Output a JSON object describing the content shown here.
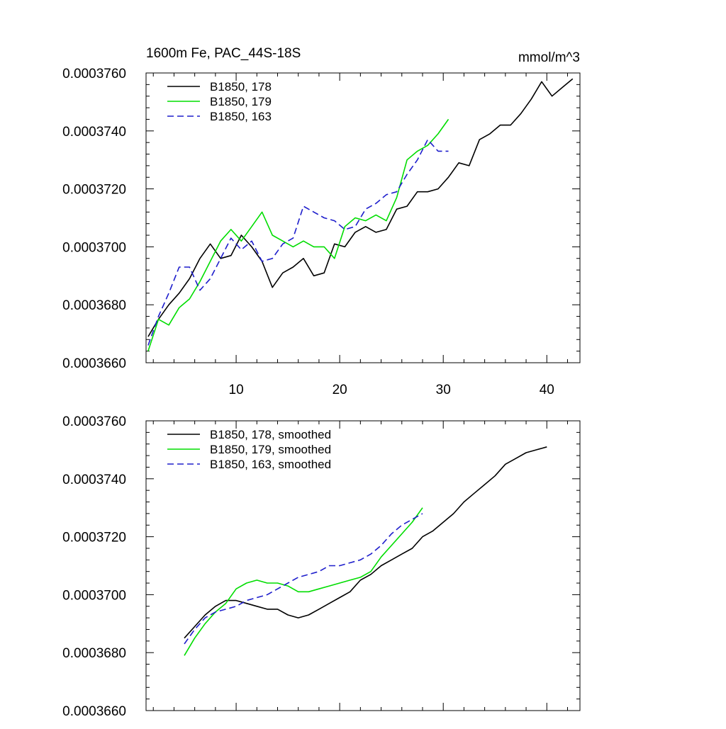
{
  "chart_data": [
    {
      "type": "line",
      "title": "1600m Fe, PAC_44S-18S",
      "units": "mmol/m^3",
      "xlim": [
        1.3,
        43.2
      ],
      "ylim": [
        0.000366,
        0.000376
      ],
      "yticks": [
        0.000366,
        0.000368,
        0.00037,
        0.000372,
        0.000374,
        0.000376
      ],
      "ytick_labels": [
        "0.0003660",
        "0.0003680",
        "0.0003700",
        "0.0003720",
        "0.0003740",
        "0.0003760"
      ],
      "xticks": [
        10,
        20,
        30,
        40
      ],
      "xtick_labels": [
        "10",
        "20",
        "30",
        "40"
      ],
      "legend_position": "top-left",
      "series": [
        {
          "name": "B1850, 178",
          "color": "#000000",
          "dash": "solid",
          "x": [
            1.5,
            2.5,
            3.5,
            4.5,
            5.5,
            6.5,
            7.5,
            8.5,
            9.5,
            10.5,
            11.5,
            12.5,
            13.5,
            14.5,
            15.5,
            16.5,
            17.5,
            18.5,
            19.5,
            20.5,
            21.5,
            22.5,
            23.5,
            24.5,
            25.5,
            26.5,
            27.5,
            28.5,
            29.5,
            30.5,
            31.5,
            32.5,
            33.5,
            34.5,
            35.5,
            36.5,
            37.5,
            38.5,
            39.5,
            40.5,
            41.5,
            42.5
          ],
          "values": [
            0.0003669,
            0.0003675,
            0.000368,
            0.0003684,
            0.0003689,
            0.0003696,
            0.0003701,
            0.0003696,
            0.0003697,
            0.0003704,
            0.00037,
            0.0003695,
            0.0003686,
            0.0003691,
            0.0003693,
            0.0003696,
            0.000369,
            0.0003691,
            0.0003701,
            0.00037,
            0.0003705,
            0.0003707,
            0.0003705,
            0.0003706,
            0.0003713,
            0.0003714,
            0.0003719,
            0.0003719,
            0.000372,
            0.0003724,
            0.0003729,
            0.0003728,
            0.0003737,
            0.0003739,
            0.0003742,
            0.0003742,
            0.0003746,
            0.0003751,
            0.0003757,
            0.0003752,
            0.0003755,
            0.0003758
          ]
        },
        {
          "name": "B1850, 179",
          "color": "#00dd00",
          "dash": "solid",
          "x": [
            1.5,
            2.5,
            3.5,
            4.5,
            5.5,
            6.5,
            7.5,
            8.5,
            9.5,
            10.5,
            11.5,
            12.5,
            13.5,
            14.5,
            15.5,
            16.5,
            17.5,
            18.5,
            19.5,
            20.5,
            21.5,
            22.5,
            23.5,
            24.5,
            25.5,
            26.5,
            27.5,
            28.5,
            29.5,
            30.5
          ],
          "values": [
            0.0003664,
            0.0003675,
            0.0003673,
            0.0003679,
            0.0003682,
            0.0003688,
            0.0003695,
            0.0003702,
            0.0003706,
            0.0003702,
            0.0003707,
            0.0003712,
            0.0003704,
            0.0003702,
            0.00037,
            0.0003702,
            0.00037,
            0.00037,
            0.0003696,
            0.0003707,
            0.000371,
            0.0003709,
            0.0003711,
            0.0003709,
            0.0003717,
            0.000373,
            0.0003733,
            0.0003735,
            0.0003739,
            0.0003744
          ]
        },
        {
          "name": "B1850, 163",
          "color": "#1e1ecc",
          "dash": "dashed",
          "x": [
            1.5,
            2.5,
            3.5,
            4.5,
            5.5,
            6.5,
            7.5,
            8.5,
            9.5,
            10.5,
            11.5,
            12.5,
            13.5,
            14.5,
            15.5,
            16.5,
            17.5,
            18.5,
            19.5,
            20.5,
            21.5,
            22.5,
            23.5,
            24.5,
            25.5,
            26.5,
            27.5,
            28.5,
            29.5,
            30.5
          ],
          "values": [
            0.0003666,
            0.0003676,
            0.0003684,
            0.0003693,
            0.0003693,
            0.0003685,
            0.0003689,
            0.0003696,
            0.0003703,
            0.0003699,
            0.0003702,
            0.0003695,
            0.0003696,
            0.0003701,
            0.0003703,
            0.0003714,
            0.0003712,
            0.000371,
            0.0003709,
            0.0003706,
            0.0003707,
            0.0003713,
            0.0003715,
            0.0003718,
            0.0003719,
            0.0003725,
            0.000373,
            0.0003737,
            0.0003733,
            0.0003733
          ]
        }
      ]
    },
    {
      "type": "line",
      "title": "",
      "units": "",
      "xlim": [
        1.3,
        43.2
      ],
      "ylim": [
        0.000366,
        0.000376
      ],
      "yticks": [
        0.000366,
        0.000368,
        0.00037,
        0.000372,
        0.000374,
        0.000376
      ],
      "ytick_labels": [
        "0.0003660",
        "0.0003680",
        "0.0003700",
        "0.0003720",
        "0.0003740",
        "0.0003760"
      ],
      "xticks": [
        10,
        20,
        30,
        40
      ],
      "xtick_labels": [],
      "legend_position": "top-left",
      "series": [
        {
          "name": "B1850, 178, smoothed",
          "color": "#000000",
          "dash": "solid",
          "x": [
            5,
            6,
            7,
            8,
            9,
            10,
            11,
            12,
            13,
            14,
            15,
            16,
            17,
            18,
            19,
            20,
            21,
            22,
            23,
            24,
            25,
            26,
            27,
            28,
            29,
            30,
            31,
            32,
            33,
            34,
            35,
            36,
            37,
            38,
            39,
            40
          ],
          "values": [
            0.0003685,
            0.0003689,
            0.0003693,
            0.0003696,
            0.0003698,
            0.0003698,
            0.0003697,
            0.0003696,
            0.0003695,
            0.0003695,
            0.0003693,
            0.0003692,
            0.0003693,
            0.0003695,
            0.0003697,
            0.0003699,
            0.0003701,
            0.0003705,
            0.0003707,
            0.000371,
            0.0003712,
            0.0003714,
            0.0003716,
            0.000372,
            0.0003722,
            0.0003725,
            0.0003728,
            0.0003732,
            0.0003735,
            0.0003738,
            0.0003741,
            0.0003745,
            0.0003747,
            0.0003749,
            0.000375,
            0.0003751
          ]
        },
        {
          "name": "B1850, 179, smoothed",
          "color": "#00dd00",
          "dash": "solid",
          "x": [
            5,
            6,
            7,
            8,
            9,
            10,
            11,
            12,
            13,
            14,
            15,
            16,
            17,
            18,
            19,
            20,
            21,
            22,
            23,
            24,
            25,
            26,
            27,
            28
          ],
          "values": [
            0.0003679,
            0.0003685,
            0.000369,
            0.0003694,
            0.0003697,
            0.0003702,
            0.0003704,
            0.0003705,
            0.0003704,
            0.0003704,
            0.0003703,
            0.0003701,
            0.0003701,
            0.0003702,
            0.0003703,
            0.0003704,
            0.0003705,
            0.0003706,
            0.0003708,
            0.0003713,
            0.0003717,
            0.0003721,
            0.0003725,
            0.000373
          ]
        },
        {
          "name": "B1850, 163, smoothed",
          "color": "#1e1ecc",
          "dash": "dashed",
          "x": [
            5,
            6,
            7,
            8,
            9,
            10,
            11,
            12,
            13,
            14,
            15,
            16,
            17,
            18,
            19,
            20,
            21,
            22,
            23,
            24,
            25,
            26,
            27,
            28
          ],
          "values": [
            0.0003683,
            0.0003688,
            0.0003692,
            0.0003694,
            0.0003695,
            0.0003696,
            0.0003698,
            0.0003699,
            0.00037,
            0.0003702,
            0.0003704,
            0.0003706,
            0.0003707,
            0.0003708,
            0.000371,
            0.000371,
            0.0003711,
            0.0003712,
            0.0003714,
            0.0003717,
            0.0003721,
            0.0003724,
            0.0003726,
            0.0003728
          ]
        }
      ]
    }
  ]
}
